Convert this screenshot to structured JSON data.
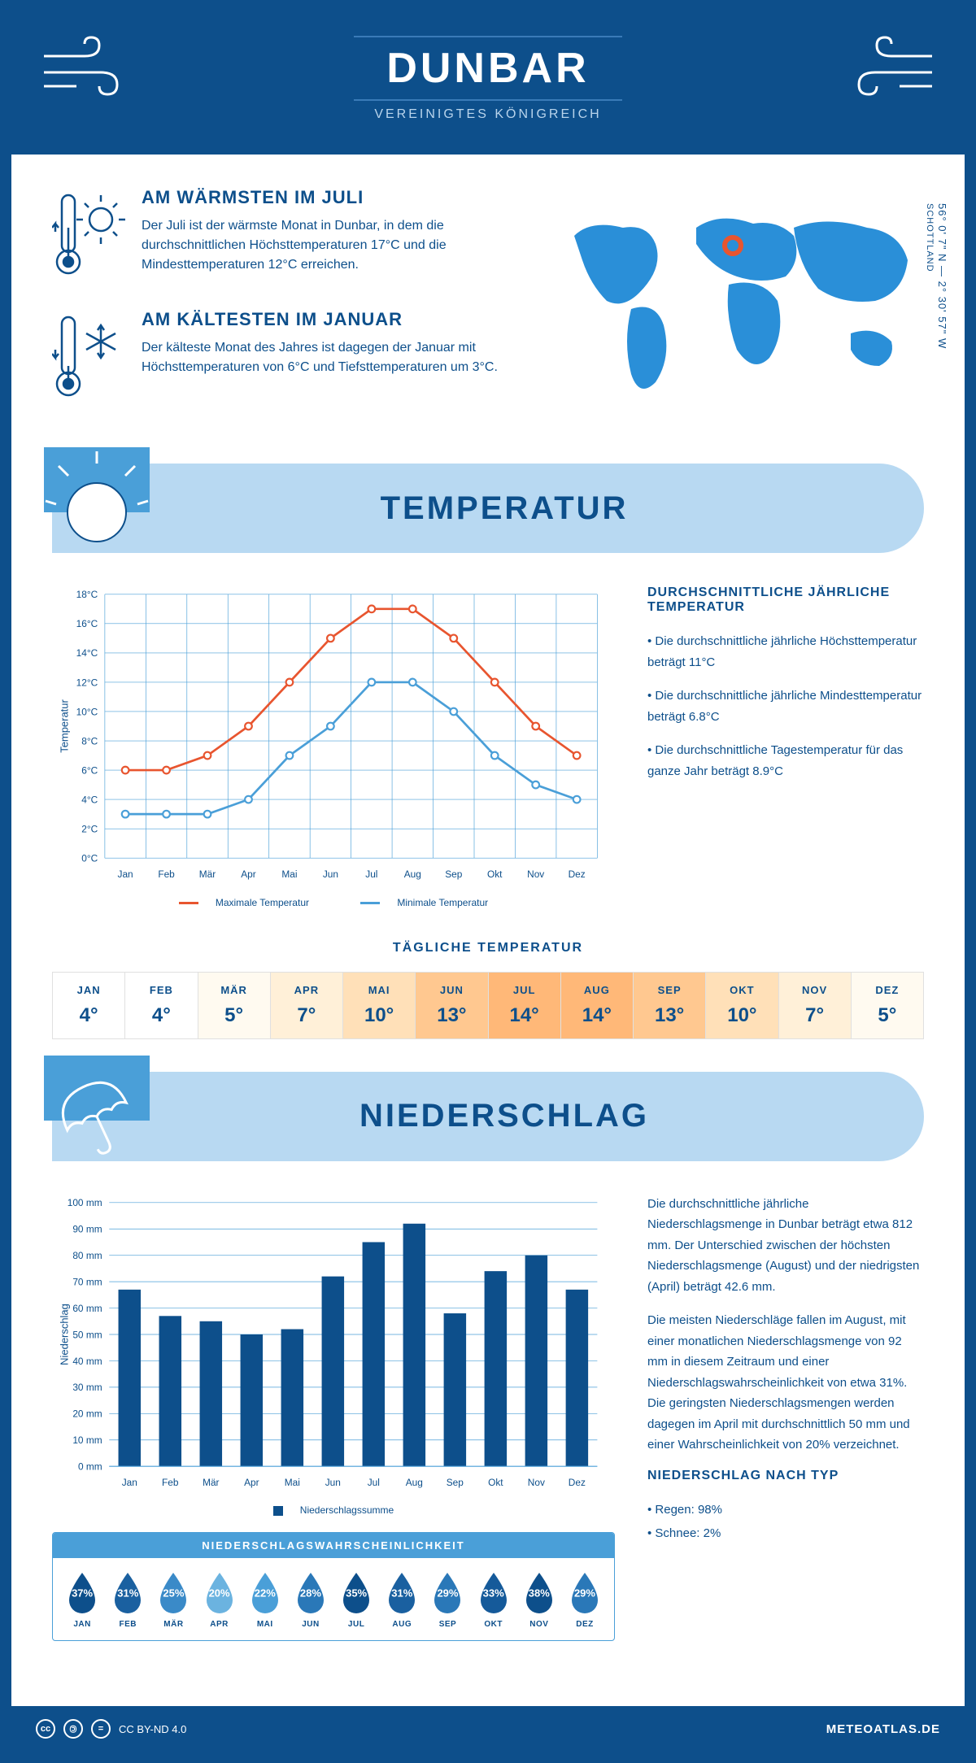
{
  "header": {
    "title": "DUNBAR",
    "subtitle": "VEREINIGTES KÖNIGREICH"
  },
  "coords": {
    "lat_lon": "56° 0' 7\" N — 2° 30' 57\" W",
    "region": "SCHOTTLAND"
  },
  "intro": {
    "warmest": {
      "title": "AM WÄRMSTEN IM JULI",
      "text": "Der Juli ist der wärmste Monat in Dunbar, in dem die durchschnittlichen Höchsttemperaturen 17°C und die Mindesttemperaturen 12°C erreichen."
    },
    "coldest": {
      "title": "AM KÄLTESTEN IM JANUAR",
      "text": "Der kälteste Monat des Jahres ist dagegen der Januar mit Höchsttemperaturen von 6°C und Tiefsttemperaturen um 3°C."
    }
  },
  "temperature_section": {
    "title": "TEMPERATUR",
    "info_title": "DURCHSCHNITTLICHE JÄHRLICHE TEMPERATUR",
    "bullets": [
      "• Die durchschnittliche jährliche Höchsttemperatur beträgt 11°C",
      "• Die durchschnittliche jährliche Mindesttemperatur beträgt 6.8°C",
      "• Die durchschnittliche Tagestemperatur für das ganze Jahr beträgt 8.9°C"
    ],
    "chart": {
      "months": [
        "Jan",
        "Feb",
        "Mär",
        "Apr",
        "Mai",
        "Jun",
        "Jul",
        "Aug",
        "Sep",
        "Okt",
        "Nov",
        "Dez"
      ],
      "max": [
        6,
        6,
        7,
        9,
        12,
        15,
        17,
        17,
        15,
        12,
        9,
        7
      ],
      "min": [
        3,
        3,
        3,
        4,
        7,
        9,
        12,
        12,
        10,
        7,
        5,
        4
      ],
      "max_color": "#e8552f",
      "min_color": "#4a9fd8",
      "ymax": 18,
      "ystep": 2,
      "ylabel": "Temperatur",
      "legend_max": "Maximale Temperatur",
      "legend_min": "Minimale Temperatur",
      "grid_color": "#4a9fd8"
    },
    "daily_title": "TÄGLICHE TEMPERATUR",
    "daily": {
      "months": [
        "JAN",
        "FEB",
        "MÄR",
        "APR",
        "MAI",
        "JUN",
        "JUL",
        "AUG",
        "SEP",
        "OKT",
        "NOV",
        "DEZ"
      ],
      "values": [
        "4°",
        "4°",
        "5°",
        "7°",
        "10°",
        "13°",
        "14°",
        "14°",
        "13°",
        "10°",
        "7°",
        "5°"
      ],
      "bg_colors": [
        "#ffffff",
        "#ffffff",
        "#fffaf0",
        "#fff0d8",
        "#ffe0b8",
        "#ffc890",
        "#ffb878",
        "#ffb878",
        "#ffc890",
        "#ffe0b8",
        "#fff0d8",
        "#fffaf0"
      ]
    }
  },
  "precip_section": {
    "title": "NIEDERSCHLAG",
    "chart": {
      "months": [
        "Jan",
        "Feb",
        "Mär",
        "Apr",
        "Mai",
        "Jun",
        "Jul",
        "Aug",
        "Sep",
        "Okt",
        "Nov",
        "Dez"
      ],
      "values": [
        67,
        57,
        55,
        50,
        52,
        72,
        85,
        92,
        58,
        74,
        80,
        67
      ],
      "ymax": 100,
      "ystep": 10,
      "ylabel": "Niederschlag",
      "bar_color": "#0d4f8b",
      "grid_color": "#4a9fd8",
      "legend": "Niederschlagssumme"
    },
    "text1": "Die durchschnittliche jährliche Niederschlagsmenge in Dunbar beträgt etwa 812 mm. Der Unterschied zwischen der höchsten Niederschlagsmenge (August) und der niedrigsten (April) beträgt 42.6 mm.",
    "text2": "Die meisten Niederschläge fallen im August, mit einer monatlichen Niederschlagsmenge von 92 mm in diesem Zeitraum und einer Niederschlagswahrscheinlichkeit von etwa 31%. Die geringsten Niederschlagsmengen werden dagegen im April mit durchschnittlich 50 mm und einer Wahrscheinlichkeit von 20% verzeichnet.",
    "type_title": "NIEDERSCHLAG NACH TYP",
    "type_rain": "• Regen: 98%",
    "type_snow": "• Schnee: 2%",
    "prob_title": "NIEDERSCHLAGSWAHRSCHEINLICHKEIT",
    "prob": {
      "months": [
        "JAN",
        "FEB",
        "MÄR",
        "APR",
        "MAI",
        "JUN",
        "JUL",
        "AUG",
        "SEP",
        "OKT",
        "NOV",
        "DEZ"
      ],
      "values": [
        "37%",
        "31%",
        "25%",
        "20%",
        "22%",
        "28%",
        "35%",
        "31%",
        "29%",
        "33%",
        "38%",
        "29%"
      ],
      "colors": [
        "#0d4f8b",
        "#1a60a0",
        "#3a8ac8",
        "#6bb3e0",
        "#4a9fd8",
        "#2a78b8",
        "#0d4f8b",
        "#1a60a0",
        "#2a78b8",
        "#155a9a",
        "#0d4f8b",
        "#2a78b8"
      ]
    }
  },
  "footer": {
    "license": "CC BY-ND 4.0",
    "site": "METEOATLAS.DE"
  }
}
